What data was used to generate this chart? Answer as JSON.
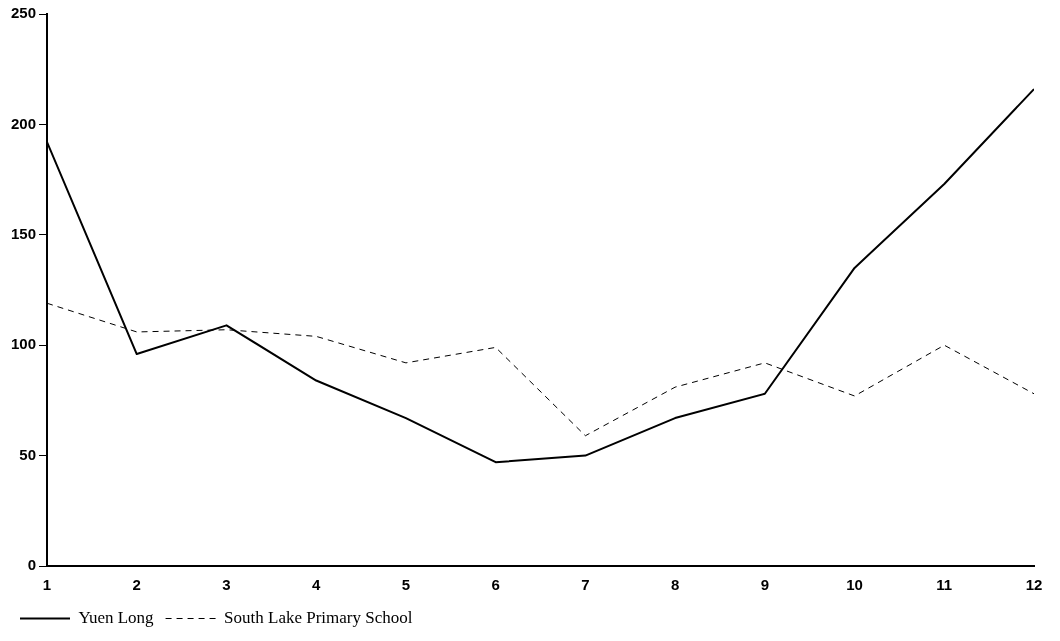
{
  "chart_data": {
    "type": "line",
    "x": [
      1,
      2,
      3,
      4,
      5,
      6,
      7,
      8,
      9,
      10,
      11,
      12
    ],
    "series": [
      {
        "name": "Yuen Long",
        "color": "#000000",
        "line_style": "solid",
        "values": [
          192,
          96,
          109,
          84,
          67,
          47,
          50,
          67,
          78,
          135,
          173,
          216
        ]
      },
      {
        "name": "South Lake Primary School",
        "color": "#000000",
        "line_style": "dashed",
        "values": [
          119,
          106,
          107,
          104,
          92,
          99,
          59,
          81,
          92,
          77,
          100,
          78
        ]
      }
    ],
    "xlim": [
      1,
      12
    ],
    "xticks": [
      1,
      2,
      3,
      4,
      5,
      6,
      7,
      8,
      9,
      10,
      11,
      12
    ],
    "ylim": [
      0,
      250
    ],
    "yticks": [
      0,
      50,
      100,
      150,
      200,
      250
    ],
    "grid": false,
    "legend": "bottom left",
    "marker": "none"
  }
}
